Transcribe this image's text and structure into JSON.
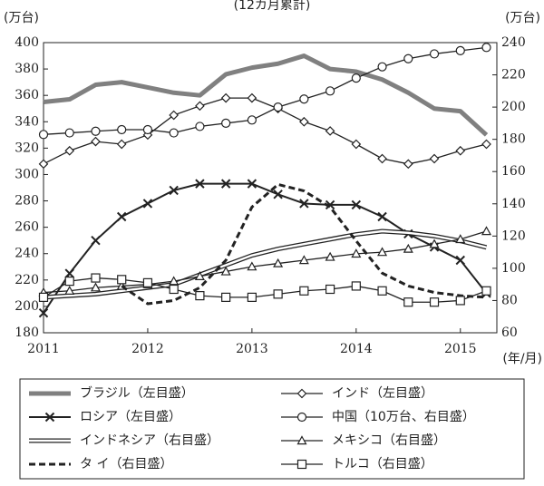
{
  "chart_data": {
    "type": "line",
    "title": "(12カ月累計)",
    "y_label": "(万台)",
    "y2_label": "(万台)",
    "x_label": "(年/月)",
    "x": [
      2011,
      2011.25,
      2011.5,
      2011.75,
      2012,
      2012.25,
      2012.5,
      2012.75,
      2013,
      2013.25,
      2013.5,
      2013.75,
      2014,
      2014.25,
      2014.5,
      2014.75,
      2015,
      2015.25
    ],
    "xlim": [
      2011,
      2015.35
    ],
    "xticks": [
      2011,
      2012,
      2013,
      2014,
      2015
    ],
    "ylim": [
      180,
      400
    ],
    "yticks": [
      180,
      200,
      220,
      240,
      260,
      280,
      300,
      320,
      340,
      360,
      380,
      400
    ],
    "y2lim": [
      60,
      240
    ],
    "y2ticks": [
      60,
      80,
      100,
      120,
      140,
      160,
      180,
      200,
      220,
      240
    ],
    "series": [
      {
        "name": "ブラジル（左目盛）",
        "color": "#808080",
        "marker": "none",
        "style": "thick",
        "values": [
          355,
          357,
          368,
          370,
          366,
          362,
          360,
          376,
          381,
          384,
          390,
          380,
          378,
          372,
          362,
          350,
          348,
          330
        ]
      },
      {
        "name": "インド（左目盛）",
        "color": "#222222",
        "marker": "diamond",
        "style": "solid",
        "values": [
          308,
          318,
          325,
          323,
          330,
          345,
          352,
          358,
          358,
          350,
          340,
          333,
          323,
          312,
          308,
          312,
          318,
          323
        ]
      },
      {
        "name": "ロシア（左目盛）",
        "color": "#222222",
        "marker": "cross",
        "style": "medium",
        "values": [
          195,
          225,
          250,
          268,
          278,
          288,
          293,
          293,
          293,
          285,
          278,
          277,
          277,
          268,
          255,
          245,
          235,
          210
        ]
      },
      {
        "name": "中国（10万台、右目盛）",
        "color": "#222222",
        "marker": "circle",
        "style": "solid",
        "axis": "y2",
        "values": [
          183,
          184,
          185,
          186,
          186,
          184,
          188,
          190,
          192,
          200,
          205,
          210,
          218,
          225,
          230,
          233,
          235,
          237
        ]
      },
      {
        "name": "インドネシア（右目盛）",
        "color": "#222222",
        "marker": "none",
        "style": "double",
        "axis": "y2",
        "values": [
          82,
          83,
          84,
          86,
          88,
          90,
          96,
          102,
          108,
          112,
          115,
          118,
          121,
          123,
          122,
          120,
          117,
          113
        ]
      },
      {
        "name": "メキシコ（右目盛）",
        "color": "#222222",
        "marker": "triangle",
        "style": "solid",
        "axis": "y2",
        "values": [
          85,
          86,
          88,
          89,
          90,
          92,
          95,
          98,
          101,
          103,
          105,
          107,
          109,
          110,
          112,
          115,
          118,
          123
        ]
      },
      {
        "name": "タ イ（右目盛）",
        "color": "#222222",
        "marker": "none",
        "style": "dashed",
        "axis": "y2",
        "values": [
          null,
          null,
          null,
          89,
          78,
          80,
          88,
          105,
          138,
          152,
          148,
          138,
          117,
          97,
          89,
          85,
          83,
          82
        ]
      },
      {
        "name": "トルコ（右目盛）",
        "color": "#222222",
        "marker": "square",
        "style": "solid",
        "axis": "y2",
        "values": [
          82,
          92,
          94,
          93,
          91,
          87,
          83,
          82,
          82,
          84,
          86,
          87,
          89,
          86,
          79,
          79,
          80,
          86
        ]
      }
    ]
  }
}
